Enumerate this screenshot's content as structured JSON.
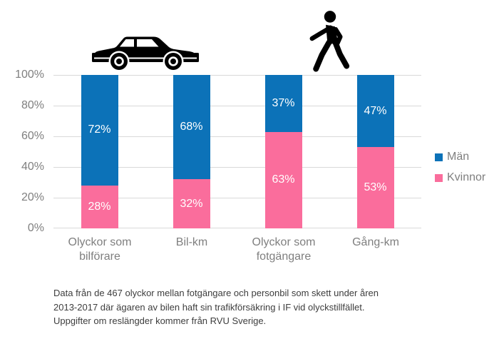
{
  "chart_data": {
    "type": "bar",
    "stacked": true,
    "unit": "%",
    "categories": [
      "Olyckor som bilförare",
      "Bil-km",
      "Olyckor som fotgängare",
      "Gång-km"
    ],
    "series": [
      {
        "name": "Män",
        "color": "#0C72B8",
        "values": [
          72,
          68,
          37,
          47
        ],
        "labels": [
          "72%",
          "68%",
          "37%",
          "47%"
        ]
      },
      {
        "name": "Kvinnor",
        "color": "#FA6D9C",
        "values": [
          28,
          32,
          63,
          53
        ],
        "labels": [
          "28%",
          "32%",
          "63%",
          "53%"
        ]
      }
    ],
    "y_ticks": [
      "100%",
      "80%",
      "60%",
      "40%",
      "20%",
      "0%"
    ],
    "ylim": [
      0,
      100
    ],
    "grid": true,
    "legend_position": "right",
    "group_icons": [
      {
        "name": "car-icon",
        "applies_to": [
          "Olyckor som bilförare",
          "Bil-km"
        ]
      },
      {
        "name": "pedestrian-icon",
        "applies_to": [
          "Olyckor som fotgängare",
          "Gång-km"
        ]
      }
    ]
  },
  "legend": {
    "items": [
      {
        "label": "Män",
        "color": "#0C72B8"
      },
      {
        "label": "Kvinnor",
        "color": "#FA6D9C"
      }
    ]
  },
  "caption": {
    "lines": [
      "Data från de 467 olyckor mellan fotgängare och personbil som skett under åren",
      "2013-2017 där ägaren av bilen haft sin trafikförsäkring i IF vid olyckstillfället.",
      "Uppgifter om reslängder kommer från RVU Sverige."
    ]
  },
  "colors": {
    "men": "#0C72B8",
    "kvinnor": "#FA6D9C",
    "gridline": "#D9D9D9",
    "axis_text": "#7F7F7F",
    "caption_text": "#3D3D3D"
  }
}
